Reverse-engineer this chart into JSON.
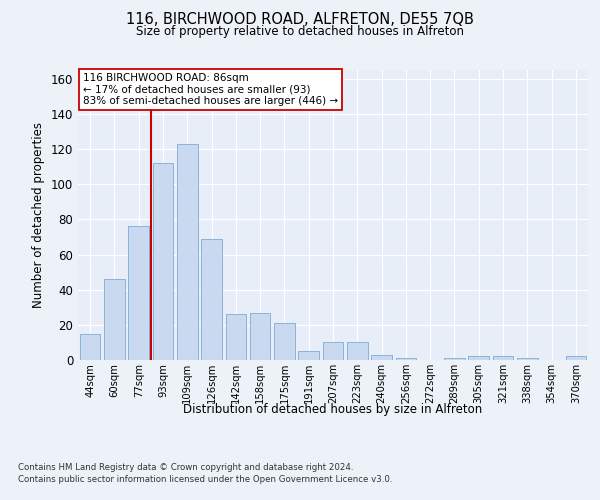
{
  "title": "116, BIRCHWOOD ROAD, ALFRETON, DE55 7QB",
  "subtitle": "Size of property relative to detached houses in Alfreton",
  "xlabel": "Distribution of detached houses by size in Alfreton",
  "ylabel": "Number of detached properties",
  "bar_color": "#c9d9f0",
  "bar_edge_color": "#7eaad4",
  "categories": [
    "44sqm",
    "60sqm",
    "77sqm",
    "93sqm",
    "109sqm",
    "126sqm",
    "142sqm",
    "158sqm",
    "175sqm",
    "191sqm",
    "207sqm",
    "223sqm",
    "240sqm",
    "256sqm",
    "272sqm",
    "289sqm",
    "305sqm",
    "321sqm",
    "338sqm",
    "354sqm",
    "370sqm"
  ],
  "values": [
    15,
    46,
    76,
    112,
    123,
    69,
    26,
    27,
    21,
    5,
    10,
    10,
    3,
    1,
    0,
    1,
    2,
    2,
    1,
    0,
    2
  ],
  "ylim": [
    0,
    165
  ],
  "yticks": [
    0,
    20,
    40,
    60,
    80,
    100,
    120,
    140,
    160
  ],
  "property_line_color": "#cc0000",
  "annotation_text": "116 BIRCHWOOD ROAD: 86sqm\n← 17% of detached houses are smaller (93)\n83% of semi-detached houses are larger (446) →",
  "annotation_box_color": "#ffffff",
  "annotation_box_edge_color": "#cc0000",
  "footer_line1": "Contains HM Land Registry data © Crown copyright and database right 2024.",
  "footer_line2": "Contains public sector information licensed under the Open Government Licence v3.0.",
  "background_color": "#edf1f8",
  "plot_bg_color": "#e8eef8"
}
